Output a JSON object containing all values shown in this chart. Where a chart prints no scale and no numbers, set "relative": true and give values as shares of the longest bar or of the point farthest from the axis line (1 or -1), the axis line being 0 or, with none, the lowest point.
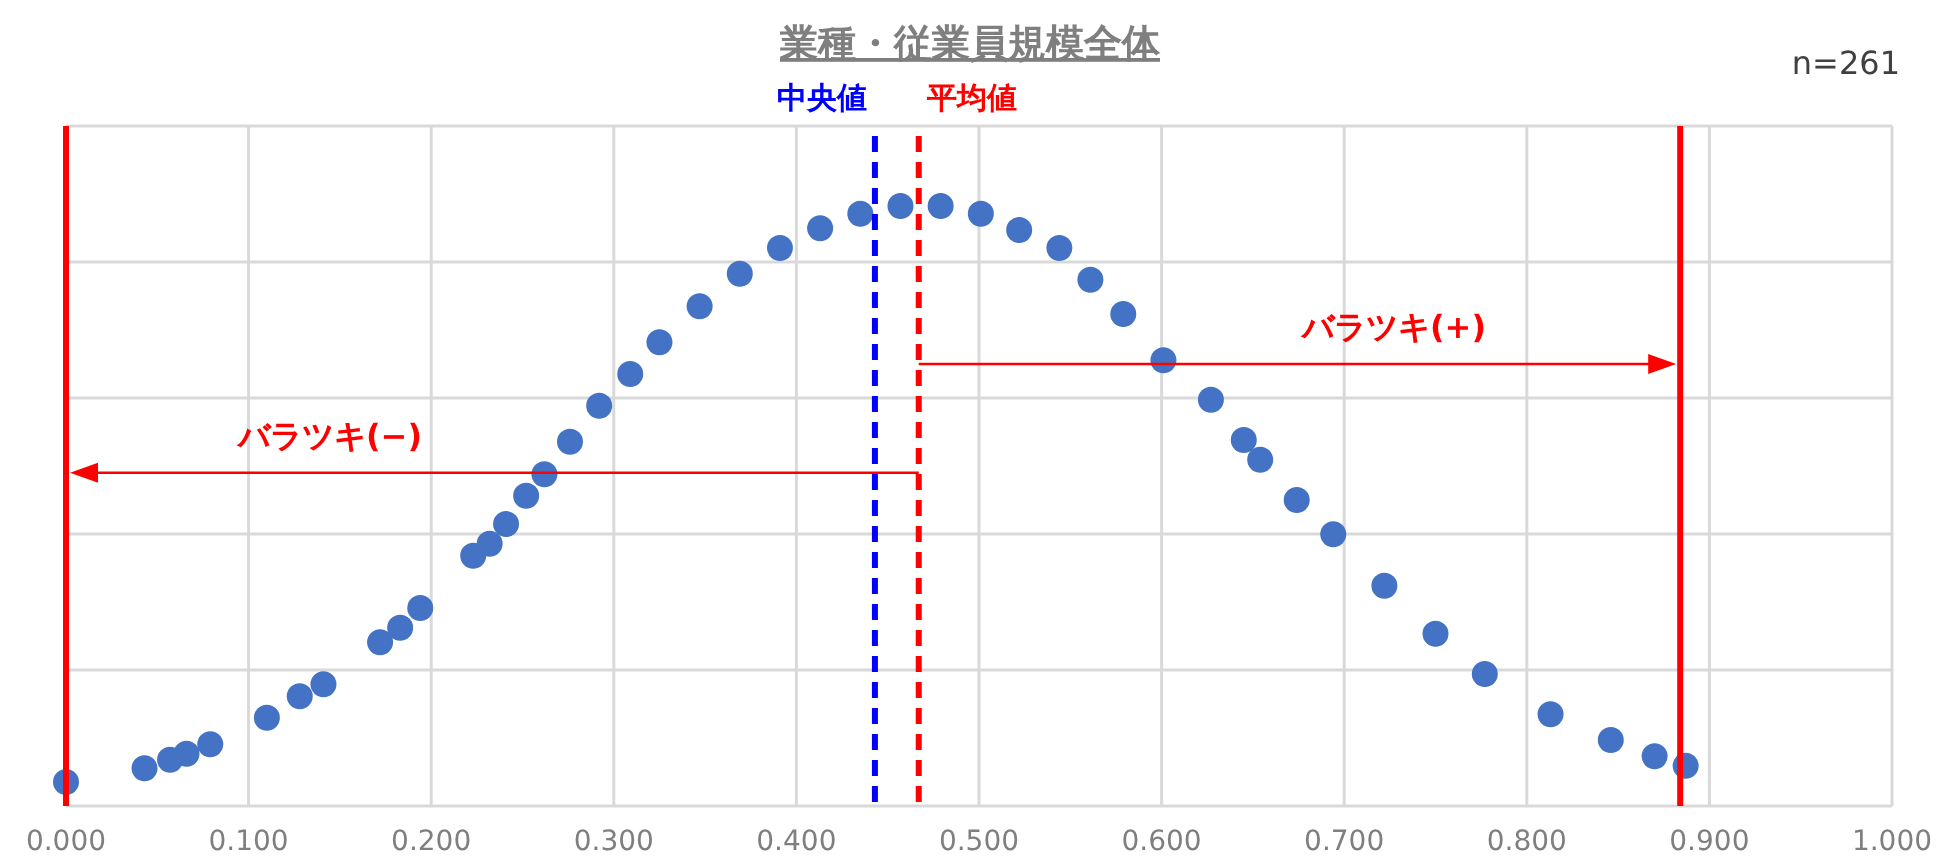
{
  "chart_data": {
    "type": "scatter",
    "title": "業種・従業員規模全体",
    "relative": true,
    "marker": "circle",
    "grid": true,
    "xlim": [
      0,
      1
    ],
    "xticks": [
      {
        "value": 0,
        "label": "0.000"
      },
      {
        "value": 0.1,
        "label": "0.100"
      },
      {
        "value": 0.2,
        "label": "0.200"
      },
      {
        "value": 0.3,
        "label": "0.300"
      },
      {
        "value": 0.4,
        "label": "0.400"
      },
      {
        "value": 0.5,
        "label": "0.500"
      },
      {
        "value": 0.6,
        "label": "0.600"
      },
      {
        "value": 0.7,
        "label": "0.700"
      },
      {
        "value": 0.8,
        "label": "0.800"
      },
      {
        "value": 0.9,
        "label": "0.900"
      },
      {
        "value": 1,
        "label": "1.000"
      }
    ],
    "series": [
      {
        "color": "#4472c4",
        "x": [
          0,
          0.043,
          0.057,
          0.066,
          0.079,
          0.11,
          0.128,
          0.141,
          0.172,
          0.183,
          0.194,
          0.223,
          0.232,
          0.241,
          0.252,
          0.262,
          0.276,
          0.292,
          0.309,
          0.325,
          0.347,
          0.369,
          0.391,
          0.413,
          0.435,
          0.457,
          0.479,
          0.501,
          0.522,
          0.544,
          0.561,
          0.579,
          0.601,
          0.627,
          0.645,
          0.654,
          0.674,
          0.694,
          0.722,
          0.75,
          0.777,
          0.813,
          0.846,
          0.87,
          0.887
        ],
        "values": [
          0.04,
          0.063,
          0.077,
          0.087,
          0.103,
          0.147,
          0.183,
          0.203,
          0.273,
          0.297,
          0.33,
          0.417,
          0.437,
          0.47,
          0.517,
          0.553,
          0.607,
          0.667,
          0.72,
          0.773,
          0.833,
          0.887,
          0.93,
          0.963,
          0.987,
          1.0,
          1.0,
          0.987,
          0.96,
          0.93,
          0.877,
          0.82,
          0.743,
          0.677,
          0.61,
          0.577,
          0.51,
          0.453,
          0.367,
          0.287,
          0.22,
          0.153,
          0.11,
          0.083,
          0.067
        ]
      }
    ],
    "ref_lines": [
      {
        "axis": "x",
        "value": 0,
        "color": "#ff0000",
        "line_style": "solid"
      },
      {
        "axis": "x",
        "value": 0.884,
        "color": "#ff0000",
        "line_style": "solid"
      },
      {
        "axis": "x",
        "value": 0.443,
        "label": "中央値",
        "color": "#0000ff",
        "line_style": "dashed"
      },
      {
        "axis": "x",
        "value": 0.467,
        "label": "平均値",
        "color": "#ff0000",
        "line_style": "dashed"
      }
    ],
    "annotations": [
      "n=261",
      "バラツキ(−)",
      "バラツキ(+)"
    ]
  }
}
